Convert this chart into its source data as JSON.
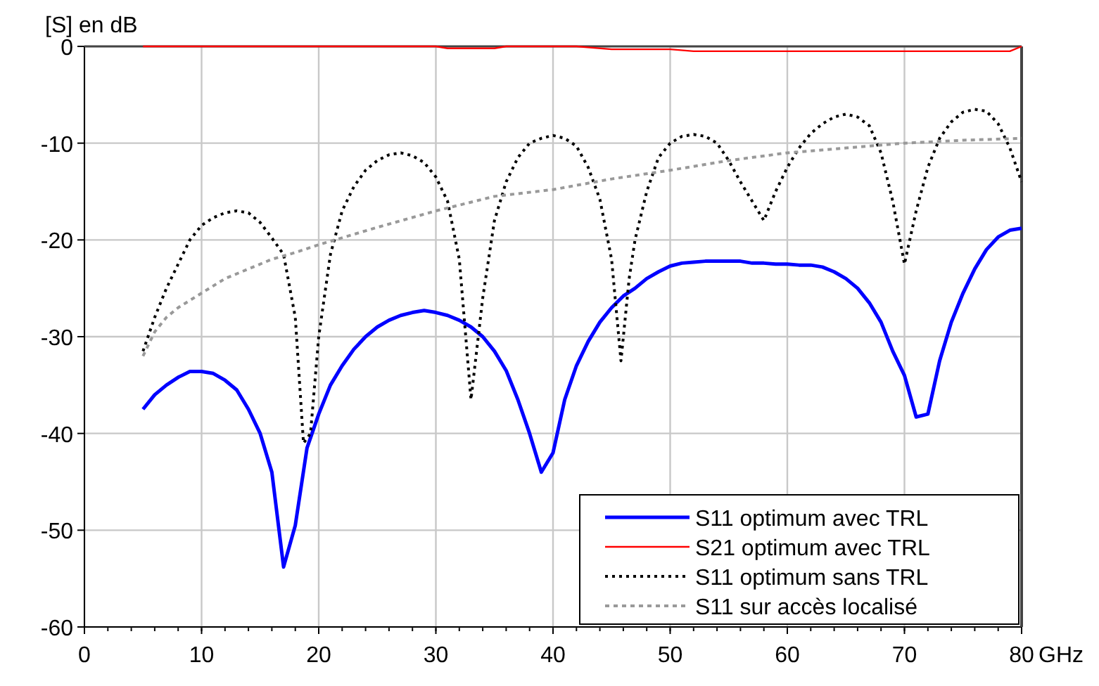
{
  "chart_data": {
    "type": "line",
    "ylabel": "[S] en dB",
    "xlabel": "GHz",
    "xlim": [
      0,
      80
    ],
    "ylim": [
      -60,
      0
    ],
    "xticks": [
      0,
      10,
      20,
      30,
      40,
      50,
      60,
      70,
      80
    ],
    "yticks": [
      -60,
      -50,
      -40,
      -30,
      -20,
      -10,
      0
    ],
    "grid": true,
    "legend": "bottom right",
    "marker": "none",
    "series": [
      {
        "name": "S11 optimum avec TRL",
        "color": "#0000ff",
        "line_style": "solid",
        "x": [
          5,
          6,
          7,
          8,
          9,
          10,
          11,
          12,
          13,
          14,
          15,
          16,
          17,
          18,
          19,
          20,
          21,
          22,
          23,
          24,
          25,
          26,
          27,
          28,
          29,
          30,
          31,
          32,
          33,
          34,
          35,
          36,
          37,
          38,
          39,
          40,
          41,
          42,
          43,
          44,
          45,
          46,
          47,
          48,
          49,
          50,
          51,
          52,
          53,
          54,
          55,
          56,
          57,
          58,
          59,
          60,
          61,
          62,
          63,
          64,
          65,
          66,
          67,
          68,
          69,
          70,
          71,
          72,
          73,
          74,
          75,
          76,
          77,
          78,
          79,
          80
        ],
        "values": [
          -37.5,
          -36,
          -35,
          -34.2,
          -33.6,
          -33.6,
          -33.8,
          -34.5,
          -35.5,
          -37.5,
          -40,
          -44,
          -53.8,
          -49.5,
          -41.5,
          -38,
          -35,
          -33,
          -31.3,
          -30,
          -29,
          -28.3,
          -27.8,
          -27.5,
          -27.3,
          -27.5,
          -27.8,
          -28.3,
          -29,
          -30,
          -31.5,
          -33.5,
          -36.5,
          -40,
          -44,
          -42,
          -36.5,
          -33,
          -30.5,
          -28.5,
          -27,
          -25.8,
          -25,
          -24,
          -23.3,
          -22.7,
          -22.4,
          -22.3,
          -22.2,
          -22.2,
          -22.2,
          -22.2,
          -22.4,
          -22.4,
          -22.5,
          -22.5,
          -22.6,
          -22.6,
          -22.8,
          -23.3,
          -24,
          -25,
          -26.5,
          -28.5,
          -31.5,
          -34,
          -38.3,
          -38,
          -32.5,
          -28.5,
          -25.5,
          -23,
          -21,
          -19.7,
          -19,
          -18.8
        ]
      },
      {
        "name": "S21 optimum avec TRL",
        "color": "#ff0000",
        "line_style": "solid",
        "x": [
          5,
          10,
          20,
          30,
          31,
          35,
          36,
          42,
          45,
          50,
          52,
          60,
          70,
          79,
          80
        ],
        "values": [
          0,
          0,
          0,
          0,
          -0.2,
          -0.2,
          0,
          0,
          -0.3,
          -0.3,
          -0.5,
          -0.5,
          -0.5,
          -0.5,
          0
        ]
      },
      {
        "name": "S11 optimum sans TRL",
        "color": "#000000",
        "line_style": "dotted",
        "x": [
          5,
          6,
          7,
          8,
          9,
          10,
          11,
          12,
          13,
          14,
          15,
          16,
          17,
          18,
          18.7,
          19.3,
          20,
          21,
          22,
          23,
          24,
          25,
          26,
          27,
          28,
          29,
          30,
          31,
          32,
          33,
          34,
          35,
          36,
          37,
          38,
          39,
          40,
          41,
          42,
          43,
          44,
          45,
          45.8,
          46.5,
          47,
          48,
          49,
          50,
          51,
          52,
          53,
          54,
          55,
          56,
          57,
          58,
          59,
          60,
          61,
          62,
          63,
          64,
          65,
          66,
          67,
          68,
          69,
          70,
          71,
          72,
          73,
          74,
          75,
          76,
          77,
          78,
          79,
          80
        ],
        "values": [
          -31.5,
          -28,
          -25,
          -22.5,
          -20,
          -18.5,
          -17.7,
          -17.2,
          -17,
          -17.2,
          -18.2,
          -19.8,
          -21.5,
          -28,
          -41,
          -40,
          -30,
          -21.5,
          -17,
          -14.5,
          -12.8,
          -11.8,
          -11.2,
          -11,
          -11.3,
          -12,
          -13.5,
          -16,
          -22,
          -36.5,
          -26,
          -18,
          -14,
          -11.5,
          -10,
          -9.5,
          -9.2,
          -9.5,
          -10.3,
          -12.5,
          -15.8,
          -22,
          -32.5,
          -24,
          -20,
          -15,
          -11.5,
          -10,
          -9.3,
          -9.1,
          -9.3,
          -10,
          -11.8,
          -14,
          -16,
          -18,
          -15,
          -12.5,
          -10.5,
          -9,
          -8,
          -7.3,
          -7,
          -7.3,
          -8.2,
          -11,
          -16,
          -22.5,
          -17,
          -12.5,
          -9.5,
          -7.8,
          -6.8,
          -6.5,
          -6.7,
          -8,
          -10.5,
          -14
        ]
      },
      {
        "name": "S11 sur accès localisé",
        "color": "#999999",
        "line_style": "dashed",
        "x": [
          5,
          6,
          7,
          8,
          10,
          12,
          14,
          16,
          18,
          20,
          25,
          30,
          35,
          40,
          45,
          50,
          55,
          60,
          65,
          70,
          75,
          80
        ],
        "values": [
          -32,
          -29.5,
          -28,
          -27,
          -25.5,
          -24,
          -23,
          -22,
          -21.3,
          -20.5,
          -18.7,
          -17,
          -15.5,
          -14.8,
          -13.7,
          -12.8,
          -11.8,
          -11,
          -10.5,
          -10,
          -9.7,
          -9.5
        ]
      }
    ]
  }
}
